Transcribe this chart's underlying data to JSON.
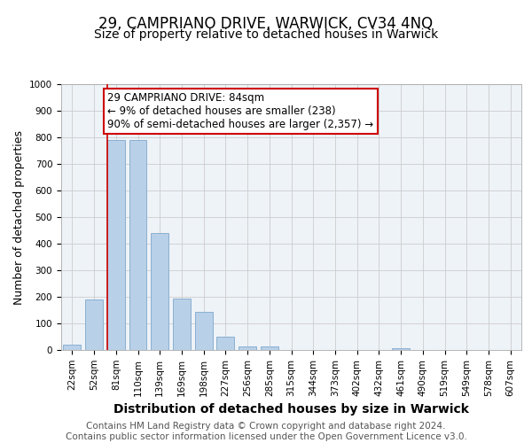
{
  "title": "29, CAMPRIANO DRIVE, WARWICK, CV34 4NQ",
  "subtitle": "Size of property relative to detached houses in Warwick",
  "xlabel": "Distribution of detached houses by size in Warwick",
  "ylabel": "Number of detached properties",
  "footer_line1": "Contains HM Land Registry data © Crown copyright and database right 2024.",
  "footer_line2": "Contains public sector information licensed under the Open Government Licence v3.0.",
  "categories": [
    "22sqm",
    "52sqm",
    "81sqm",
    "110sqm",
    "139sqm",
    "169sqm",
    "198sqm",
    "227sqm",
    "256sqm",
    "285sqm",
    "315sqm",
    "344sqm",
    "373sqm",
    "402sqm",
    "432sqm",
    "461sqm",
    "490sqm",
    "519sqm",
    "549sqm",
    "578sqm",
    "607sqm"
  ],
  "values": [
    20,
    190,
    790,
    790,
    440,
    195,
    142,
    50,
    12,
    12,
    0,
    0,
    0,
    0,
    0,
    8,
    0,
    0,
    0,
    0,
    0
  ],
  "bar_color": "#b8d0e8",
  "bar_edge_color": "#8ab0d0",
  "vline_color": "#cc0000",
  "vline_x_index": 2,
  "annotation_text": "29 CAMPRIANO DRIVE: 84sqm\n← 9% of detached houses are smaller (238)\n90% of semi-detached houses are larger (2,357) →",
  "annotation_box_color": "#ffffff",
  "annotation_box_edge_color": "#cc0000",
  "ylim": [
    0,
    1000
  ],
  "yticks": [
    0,
    100,
    200,
    300,
    400,
    500,
    600,
    700,
    800,
    900,
    1000
  ],
  "background_color": "#ffffff",
  "grid_color": "#cccccc",
  "title_fontsize": 12,
  "subtitle_fontsize": 10,
  "xlabel_fontsize": 10,
  "ylabel_fontsize": 9,
  "tick_fontsize": 7.5,
  "annotation_fontsize": 8.5,
  "footer_fontsize": 7.5
}
